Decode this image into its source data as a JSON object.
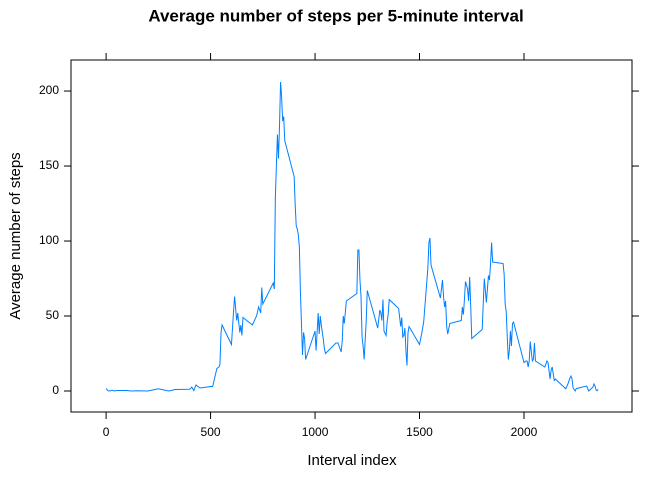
{
  "chart_data": {
    "type": "line",
    "title": "Average number of steps per 5-minute interval",
    "x_label": "Interval index",
    "y_label": "Average number of steps",
    "color": "#0080ff",
    "x": [
      0,
      10,
      20,
      30,
      40,
      50,
      100,
      120,
      150,
      200,
      250,
      300,
      330,
      400,
      410,
      420,
      430,
      440,
      450,
      500,
      510,
      520,
      530,
      540,
      545,
      550,
      555,
      600,
      610,
      615,
      625,
      630,
      640,
      645,
      650,
      655,
      700,
      720,
      730,
      740,
      745,
      750,
      800,
      805,
      810,
      820,
      825,
      830,
      835,
      840,
      845,
      850,
      855,
      900,
      905,
      910,
      915,
      920,
      925,
      930,
      935,
      940,
      945,
      950,
      955,
      1000,
      1005,
      1015,
      1020,
      1025,
      1030,
      1040,
      1045,
      1050,
      1100,
      1110,
      1125,
      1130,
      1135,
      1140,
      1150,
      1200,
      1205,
      1210,
      1215,
      1220,
      1225,
      1230,
      1235,
      1245,
      1250,
      1300,
      1310,
      1315,
      1320,
      1325,
      1330,
      1340,
      1345,
      1350,
      1355,
      1400,
      1410,
      1415,
      1420,
      1425,
      1430,
      1435,
      1440,
      1445,
      1450,
      1500,
      1510,
      1520,
      1540,
      1545,
      1550,
      1555,
      1600,
      1610,
      1615,
      1620,
      1625,
      1630,
      1635,
      1645,
      1700,
      1705,
      1710,
      1715,
      1720,
      1730,
      1735,
      1740,
      1745,
      1750,
      1800,
      1810,
      1820,
      1825,
      1830,
      1835,
      1840,
      1845,
      1850,
      1900,
      1905,
      1910,
      1915,
      1920,
      1925,
      1930,
      1935,
      1940,
      1945,
      1950,
      2000,
      2010,
      2015,
      2020,
      2025,
      2030,
      2040,
      2045,
      2050,
      2055,
      2100,
      2110,
      2115,
      2125,
      2130,
      2135,
      2145,
      2150,
      2200,
      2210,
      2215,
      2220,
      2225,
      2230,
      2235,
      2245,
      2250,
      2300,
      2310,
      2330,
      2335,
      2340,
      2345,
      2350,
      2355
    ],
    "values": [
      1.7,
      0.1,
      0.1,
      0.5,
      0,
      0.3,
      0.3,
      0,
      0.2,
      0,
      1.5,
      0,
      1,
      1.2,
      2.6,
      0.3,
      4,
      3,
      2,
      3,
      3,
      9,
      15,
      16,
      18,
      39,
      44,
      31,
      53,
      63,
      47,
      52,
      39,
      44,
      37,
      49,
      44,
      50,
      56,
      52,
      69,
      58,
      72,
      68,
      129,
      171,
      155,
      177,
      206,
      196,
      180,
      183,
      167,
      143,
      124,
      110,
      108,
      104,
      96,
      66,
      45,
      24,
      39,
      35,
      21,
      40,
      27,
      52,
      38,
      50,
      44,
      34,
      28,
      25,
      32,
      32,
      26,
      33,
      50,
      45,
      60,
      65,
      94,
      94,
      74,
      63,
      36,
      30,
      21,
      47,
      67,
      42,
      54,
      52,
      47,
      61,
      40,
      37,
      46,
      51,
      61,
      55,
      43,
      49,
      36,
      37,
      42,
      27,
      17,
      39,
      43,
      31,
      38,
      46,
      82,
      99,
      102,
      84,
      62,
      74,
      63,
      56,
      60,
      43,
      38,
      45,
      47,
      56,
      51,
      61,
      73,
      68,
      60,
      76,
      57,
      35,
      41,
      75,
      59,
      68,
      77,
      74,
      85,
      99,
      86,
      85,
      78,
      58,
      53,
      36,
      21,
      27,
      40,
      30,
      45,
      46,
      19,
      20,
      20,
      16,
      20,
      33,
      20,
      21,
      32,
      20,
      16,
      20,
      19,
      8,
      14,
      16,
      7,
      8,
      1.5,
      4.6,
      6.6,
      8.7,
      10,
      8,
      2,
      0,
      1.6,
      3.3,
      0,
      2.6,
      4.7,
      3.3,
      0.6,
      0.2,
      1.1
    ],
    "xlim": [
      -168,
      2517
    ],
    "ylim": [
      -14,
      220.7
    ],
    "xticks": [
      0,
      500,
      1000,
      1500,
      2000
    ],
    "yticks": [
      0,
      50,
      100,
      150,
      200
    ]
  }
}
